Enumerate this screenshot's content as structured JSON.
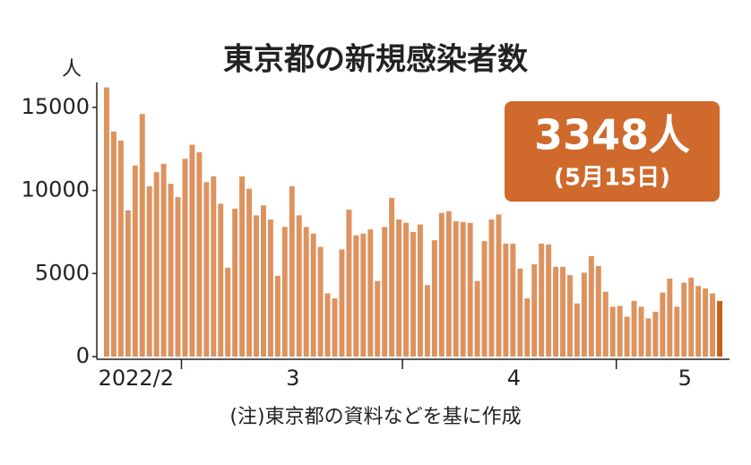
{
  "chart_data": {
    "type": "bar",
    "title": "東京都の新規感染者数",
    "y_label": "人",
    "categories": [
      null,
      null,
      null,
      null,
      "2022/2",
      null,
      null,
      null,
      null,
      null,
      null,
      null,
      null,
      null,
      null,
      null,
      null,
      null,
      null,
      null,
      null,
      null,
      null,
      null,
      null,
      null,
      "3",
      null,
      null,
      null,
      null,
      null,
      null,
      null,
      null,
      null,
      null,
      null,
      null,
      null,
      null,
      null,
      null,
      null,
      null,
      null,
      null,
      null,
      null,
      null,
      null,
      null,
      null,
      null,
      null,
      null,
      null,
      "4",
      null,
      null,
      null,
      null,
      null,
      null,
      null,
      null,
      null,
      null,
      null,
      null,
      null,
      null,
      null,
      null,
      null,
      null,
      null,
      null,
      null,
      null,
      null,
      "5",
      null,
      null,
      null,
      null,
      null
    ],
    "values": [
      16200,
      13550,
      13000,
      8800,
      11500,
      14600,
      10250,
      11100,
      11600,
      10400,
      9600,
      11900,
      12750,
      12300,
      10500,
      10850,
      9200,
      5350,
      8900,
      10850,
      10100,
      8500,
      9100,
      8250,
      4860,
      7800,
      10250,
      8500,
      7800,
      7400,
      6600,
      3800,
      3500,
      6450,
      8850,
      7300,
      7400,
      7650,
      4550,
      7800,
      9550,
      8250,
      8050,
      7500,
      7950,
      4300,
      7000,
      8650,
      8750,
      8150,
      8100,
      8050,
      4550,
      6950,
      8250,
      8550,
      6800,
      6800,
      5300,
      3500,
      5550,
      6800,
      6750,
      5400,
      5400,
      4900,
      3200,
      5050,
      6050,
      5450,
      3900,
      3000,
      3050,
      2400,
      3350,
      3000,
      2300,
      2700,
      3850,
      4700,
      3000,
      4450,
      4750,
      4250,
      4100,
      3800,
      3348
    ],
    "color": "#dd935f",
    "highlight_color": "#c9601c",
    "ylim": [
      0,
      16500
    ],
    "yticks": [
      0,
      5000,
      10000,
      15000
    ],
    "annotation": {
      "text": "3348人",
      "date": "(5月15日)"
    },
    "note": "(注)東京都の資料などを基に作成"
  }
}
